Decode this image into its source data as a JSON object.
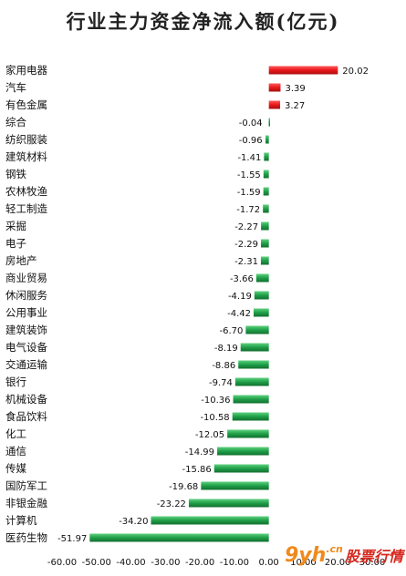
{
  "chart_data": {
    "type": "bar",
    "orientation": "horizontal",
    "title": "行业主力资金净流入额(亿元)",
    "xlim": [
      -60,
      30
    ],
    "xticks": [
      "-60.00",
      "-50.00",
      "-40.00",
      "-30.00",
      "-20.00",
      "-10.00",
      "0.00",
      "10.00",
      "20.00",
      "30.00"
    ],
    "grid": false,
    "legend": "none",
    "colors": {
      "positive": "#e8171b",
      "negative": "#1f9e48"
    },
    "categories": [
      "家用电器",
      "汽车",
      "有色金属",
      "综合",
      "纺织服装",
      "建筑材料",
      "钢铁",
      "农林牧渔",
      "轻工制造",
      "采掘",
      "电子",
      "房地产",
      "商业贸易",
      "休闲服务",
      "公用事业",
      "建筑装饰",
      "电气设备",
      "交通运输",
      "银行",
      "机械设备",
      "食品饮料",
      "化工",
      "通信",
      "传媒",
      "国防军工",
      "非银金融",
      "计算机",
      "医药生物"
    ],
    "values": [
      20.02,
      3.39,
      3.27,
      -0.04,
      -0.96,
      -1.41,
      -1.55,
      -1.59,
      -1.72,
      -2.27,
      -2.29,
      -2.31,
      -3.66,
      -4.19,
      -4.42,
      -6.7,
      -8.19,
      -8.86,
      -9.74,
      -10.36,
      -10.58,
      -12.05,
      -14.99,
      -15.86,
      -19.68,
      -23.22,
      -34.2,
      -51.97
    ],
    "value_labels": [
      "20.02",
      "3.39",
      "3.27",
      "-0.04",
      "-0.96",
      "-1.41",
      "-1.55",
      "-1.59",
      "-1.72",
      "-2.27",
      "-2.29",
      "-2.31",
      "-3.66",
      "-4.19",
      "-4.42",
      "-6.70",
      "-8.19",
      "-8.86",
      "-9.74",
      "-10.36",
      "-10.58",
      "-12.05",
      "-14.99",
      "-15.86",
      "-19.68",
      "-23.22",
      "-34.20",
      "-51.97"
    ]
  },
  "watermark": {
    "logo": "9yh",
    "domain": ".cn",
    "text": "股票行情"
  }
}
